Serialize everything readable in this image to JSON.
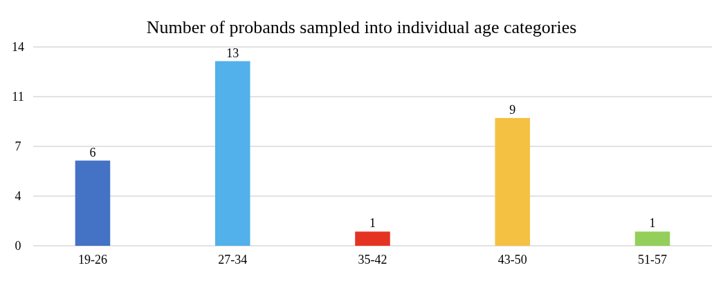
{
  "chart_data": {
    "type": "bar",
    "title": "Number of probands sampled into individual age categories",
    "categories": [
      "19-26",
      "27-34",
      "35-42",
      "43-50",
      "51-57"
    ],
    "values": [
      6,
      13,
      1,
      9,
      1
    ],
    "colors": [
      "#4472c4",
      "#52b0ea",
      "#e53323",
      "#f4c143",
      "#93cf5a"
    ],
    "ylim": [
      0,
      14
    ],
    "yticks": [
      0,
      {
        "value": 3.5,
        "label": "4"
      },
      7,
      {
        "value": 10.5,
        "label": "11"
      },
      14
    ],
    "grid": "y",
    "data_labels": true
  }
}
